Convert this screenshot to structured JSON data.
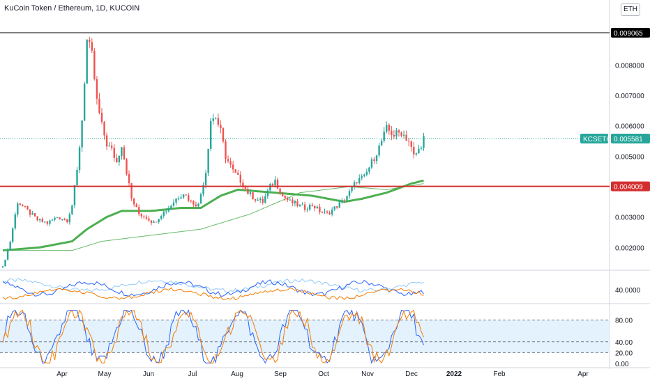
{
  "header": {
    "title": "KuCoin Token / Ethereum, 1D, KUCOIN",
    "currency_button": "ETH"
  },
  "colors": {
    "up": "#26a69a",
    "down": "#ef5350",
    "ma_thick_up": "#4caf50",
    "ma_thick_down": "#ef5350",
    "ma_thin": "#66bb6a",
    "ma_thin_red": "#e57373",
    "resistance": "#000000",
    "support": "#d32f2f",
    "price_line": "#26a69a",
    "osc_blue": "#2962ff",
    "osc_orange": "#f57c00",
    "osc_light": "#90caf9",
    "stoch_band": "#e3f2fd"
  },
  "chart_data": [
    {
      "type": "candlestick",
      "title": "KuCoin Token / Ethereum, 1D, KUCOIN",
      "symbol": "KCSETH",
      "y_range": [
        0.00125,
        0.0095
      ],
      "x_labels": [
        "Apr",
        "May",
        "Jun",
        "Jul",
        "Aug",
        "Sep",
        "Oct",
        "Nov",
        "Dec",
        "2022",
        "Feb",
        "Apr"
      ],
      "y_tick_labels": [
        "0.002000",
        "0.003000",
        "0.005000",
        "0.006000",
        "0.007000",
        "0.008000"
      ],
      "horizontal_levels": [
        {
          "label": "0.009065",
          "value": 0.009065,
          "color": "#000000"
        },
        {
          "label": "0.004009",
          "value": 0.004009,
          "color": "#d32f2f"
        }
      ],
      "last_price": {
        "symbol": "KCSETH",
        "label": "0.005581",
        "value": 0.005581
      },
      "price_keyframes": [
        [
          0,
          0.00135
        ],
        [
          3,
          0.0022
        ],
        [
          6,
          0.0035
        ],
        [
          10,
          0.0032
        ],
        [
          14,
          0.0029
        ],
        [
          18,
          0.0028
        ],
        [
          22,
          0.003
        ],
        [
          26,
          0.0029
        ],
        [
          28,
          0.0034
        ],
        [
          30,
          0.0045
        ],
        [
          32,
          0.0062
        ],
        [
          34,
          0.0088
        ],
        [
          36,
          0.0083
        ],
        [
          38,
          0.0068
        ],
        [
          40,
          0.006
        ],
        [
          42,
          0.0054
        ],
        [
          44,
          0.0052
        ],
        [
          46,
          0.0048
        ],
        [
          48,
          0.0054
        ],
        [
          50,
          0.0045
        ],
        [
          52,
          0.0036
        ],
        [
          55,
          0.0031
        ],
        [
          58,
          0.003
        ],
        [
          61,
          0.0028
        ],
        [
          64,
          0.0031
        ],
        [
          67,
          0.0033
        ],
        [
          70,
          0.0036
        ],
        [
          73,
          0.0038
        ],
        [
          76,
          0.0035
        ],
        [
          79,
          0.0034
        ],
        [
          82,
          0.0045
        ],
        [
          84,
          0.0062
        ],
        [
          86,
          0.0063
        ],
        [
          88,
          0.0058
        ],
        [
          90,
          0.005
        ],
        [
          93,
          0.0045
        ],
        [
          96,
          0.0042
        ],
        [
          99,
          0.0038
        ],
        [
          102,
          0.0036
        ],
        [
          105,
          0.0035
        ],
        [
          108,
          0.004
        ],
        [
          110,
          0.0042
        ],
        [
          113,
          0.0037
        ],
        [
          116,
          0.0035
        ],
        [
          119,
          0.0034
        ],
        [
          122,
          0.0033
        ],
        [
          125,
          0.0034
        ],
        [
          128,
          0.0032
        ],
        [
          131,
          0.0031
        ],
        [
          134,
          0.0033
        ],
        [
          137,
          0.0035
        ],
        [
          140,
          0.0038
        ],
        [
          143,
          0.0042
        ],
        [
          146,
          0.0043
        ],
        [
          149,
          0.0048
        ],
        [
          152,
          0.0053
        ],
        [
          155,
          0.0059
        ],
        [
          158,
          0.0057
        ],
        [
          161,
          0.0058
        ],
        [
          164,
          0.0055
        ],
        [
          166,
          0.005
        ],
        [
          168,
          0.0052
        ],
        [
          170,
          0.0056
        ]
      ],
      "ma_long_keyframes": [
        [
          0,
          0.0019
        ],
        [
          15,
          0.002
        ],
        [
          28,
          0.0022
        ],
        [
          34,
          0.0026
        ],
        [
          42,
          0.003
        ],
        [
          48,
          0.0032
        ],
        [
          60,
          0.0032
        ],
        [
          72,
          0.0033
        ],
        [
          80,
          0.0033
        ],
        [
          88,
          0.0037
        ],
        [
          95,
          0.0039
        ],
        [
          110,
          0.0038
        ],
        [
          125,
          0.0037
        ],
        [
          138,
          0.0035
        ],
        [
          145,
          0.0036
        ],
        [
          155,
          0.0038
        ],
        [
          165,
          0.0041
        ],
        [
          170,
          0.0042
        ]
      ],
      "ma_slow_keyframes": [
        [
          0,
          0.0019
        ],
        [
          28,
          0.0019
        ],
        [
          40,
          0.0022
        ],
        [
          60,
          0.0024
        ],
        [
          80,
          0.0026
        ],
        [
          100,
          0.0031
        ],
        [
          120,
          0.0038
        ],
        [
          140,
          0.004
        ],
        [
          155,
          0.0039
        ],
        [
          170,
          0.0041
        ]
      ]
    },
    {
      "type": "line",
      "name": "oscillator",
      "y_tick_labels": [
        "40.0000"
      ],
      "y_range": [
        0,
        100
      ]
    },
    {
      "type": "line",
      "name": "stochastic",
      "y_tick_labels": [
        "80.00",
        "40.00",
        "20.00",
        "0.00"
      ],
      "y_range": [
        0,
        100
      ],
      "band": [
        20,
        80
      ]
    }
  ]
}
